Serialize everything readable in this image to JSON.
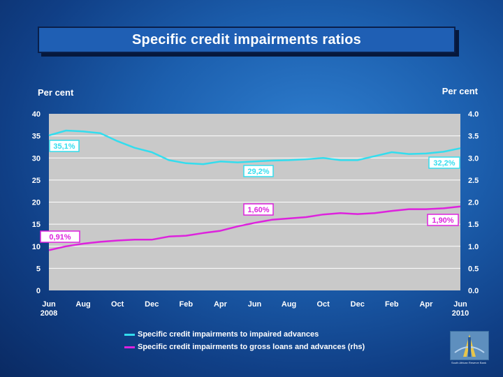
{
  "title": "Specific credit impairments ratios",
  "left_unit": "Per cent",
  "right_unit": "Per cent",
  "colors": {
    "series1": "#33ddee",
    "series2": "#dd22dd",
    "plot_bg": "#c9c9c9",
    "gridline": "#ffffff"
  },
  "legend": [
    "Specific credit impairments to impaired advances",
    "Specific credit impairments to gross loans and advances (rhs)"
  ],
  "logo_caption": "South African Reserve Bank",
  "chart_data": {
    "type": "line",
    "title": "Specific credit impairments ratios",
    "x_ticks": [
      [
        "Jun",
        "2008"
      ],
      [
        "Aug",
        ""
      ],
      [
        "Oct",
        ""
      ],
      [
        "Dec",
        ""
      ],
      [
        "Feb",
        ""
      ],
      [
        "Apr",
        ""
      ],
      [
        "Jun",
        ""
      ],
      [
        "Aug",
        ""
      ],
      [
        "Oct",
        ""
      ],
      [
        "Dec",
        ""
      ],
      [
        "Feb",
        ""
      ],
      [
        "Apr",
        ""
      ],
      [
        "Jun",
        "2010"
      ]
    ],
    "x_range": [
      0,
      24
    ],
    "y_left": {
      "min": 0,
      "max": 40,
      "ticks": [
        "0",
        "5",
        "10",
        "15",
        "20",
        "25",
        "30",
        "35",
        "40"
      ]
    },
    "y_right": {
      "min": 0,
      "max": 4,
      "ticks": [
        "0.0",
        "0.5",
        "1.0",
        "1.5",
        "2.0",
        "2.5",
        "3.0",
        "3.5",
        "4.0"
      ]
    },
    "grid": true,
    "legend_position": "bottom",
    "series": [
      {
        "name": "Specific credit impairments to impaired advances",
        "axis": "left",
        "values": [
          35.1,
          36.2,
          36.0,
          35.6,
          33.8,
          32.3,
          31.3,
          29.5,
          28.8,
          28.6,
          29.2,
          29.0,
          29.2,
          29.4,
          29.5,
          29.7,
          30.0,
          29.5,
          29.5,
          30.4,
          31.3,
          30.9,
          31.0,
          31.4,
          32.2
        ]
      },
      {
        "name": "Specific credit impairments to gross loans and advances (rhs)",
        "axis": "right",
        "values": [
          0.91,
          1.0,
          1.06,
          1.1,
          1.13,
          1.15,
          1.15,
          1.22,
          1.24,
          1.3,
          1.35,
          1.45,
          1.53,
          1.6,
          1.63,
          1.66,
          1.72,
          1.75,
          1.73,
          1.75,
          1.8,
          1.84,
          1.84,
          1.86,
          1.9
        ]
      }
    ],
    "annotations": [
      {
        "text": "35,1%",
        "series": 0
      },
      {
        "text": "29,2%",
        "series": 0
      },
      {
        "text": "32,2%",
        "series": 0
      },
      {
        "text": "1,60%",
        "series": 1
      },
      {
        "text": "0,91%",
        "series": 1
      },
      {
        "text": "1,90%",
        "series": 1
      }
    ]
  }
}
